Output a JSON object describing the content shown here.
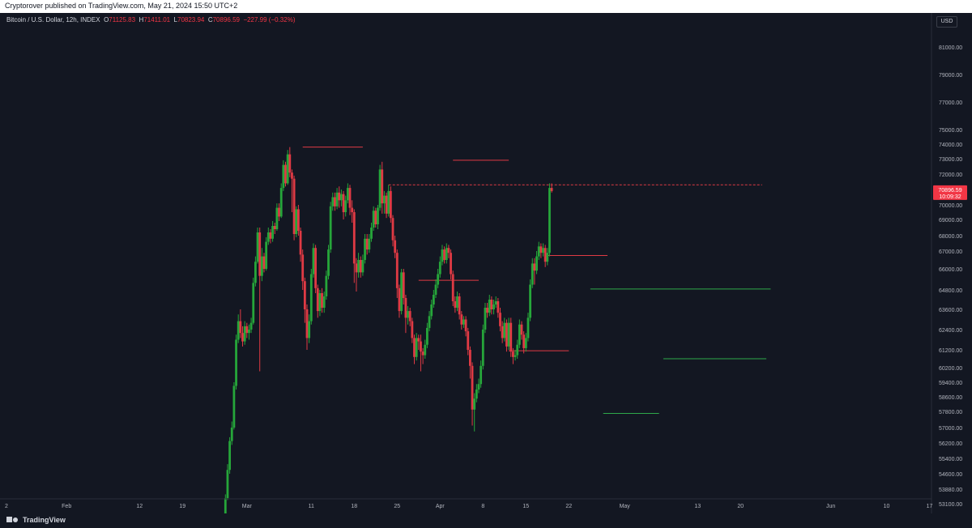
{
  "header": {
    "published": "Cryptorover published on TradingView.com, May 21, 2024 15:50 UTC+2"
  },
  "legend": {
    "symbol": "Bitcoin / U.S. Dollar, 12h, INDEX",
    "o_label": "O",
    "o_value": "71125.83",
    "h_label": "H",
    "h_value": "71411.01",
    "l_label": "L",
    "l_value": "70823.94",
    "c_label": "C",
    "c_value": "70896.59",
    "change": "−227.99 (−0.32%)"
  },
  "currency": "USD",
  "colors": {
    "up": "#089981",
    "down": "#f23645",
    "up_candle": "#26a63a",
    "bg": "#131722"
  },
  "price_tag": {
    "price": "70896.59",
    "countdown": "10:09:32"
  },
  "footer": {
    "brand": "TradingView"
  },
  "chart_data": {
    "type": "candlestick",
    "interval": "12h",
    "y_ticks": [
      "81000.00",
      "79000.00",
      "77000.00",
      "75000.00",
      "74000.00",
      "73000.00",
      "72000.00",
      "70000.00",
      "69000.00",
      "68000.00",
      "67000.00",
      "66000.00",
      "64800.00",
      "63600.00",
      "62400.00",
      "61200.00",
      "60200.00",
      "59400.00",
      "58600.00",
      "57800.00",
      "57000.00",
      "56200.00",
      "55400.00",
      "54600.00",
      "53880.00",
      "53100.00"
    ],
    "x_ticks": [
      {
        "label": "2",
        "slot": 0
      },
      {
        "label": "Feb",
        "slot": 14
      },
      {
        "label": "12",
        "slot": 31
      },
      {
        "label": "19",
        "slot": 41
      },
      {
        "label": "Mar",
        "slot": 56
      },
      {
        "label": "11",
        "slot": 71
      },
      {
        "label": "18",
        "slot": 81
      },
      {
        "label": "25",
        "slot": 91
      },
      {
        "label": "Apr",
        "slot": 101
      },
      {
        "label": "8",
        "slot": 111
      },
      {
        "label": "15",
        "slot": 121
      },
      {
        "label": "22",
        "slot": 131
      },
      {
        "label": "May",
        "slot": 144
      },
      {
        "label": "13",
        "slot": 161
      },
      {
        "label": "20",
        "slot": 171
      },
      {
        "label": "Jun",
        "slot": 192
      },
      {
        "label": "10",
        "slot": 205
      },
      {
        "label": "17",
        "slot": 215
      }
    ],
    "candles": [
      [
        52400,
        53400,
        52200,
        53600
      ],
      [
        53400,
        54800,
        53300,
        55100
      ],
      [
        54800,
        56300,
        54600,
        56500
      ],
      [
        56300,
        57000,
        56100,
        57300
      ],
      [
        57000,
        59200,
        56900,
        59400
      ],
      [
        59200,
        61800,
        59000,
        62100
      ],
      [
        61800,
        62900,
        61600,
        63300
      ],
      [
        62900,
        62200,
        61900,
        63600
      ],
      [
        62200,
        61700,
        61400,
        62600
      ],
      [
        61700,
        62600,
        61500,
        62900
      ],
      [
        62600,
        62200,
        61900,
        62800
      ],
      [
        62200,
        62400,
        61800,
        62700
      ],
      [
        62400,
        62800,
        62200,
        63100
      ],
      [
        62800,
        65200,
        62700,
        65500
      ],
      [
        65200,
        66400,
        65000,
        66700
      ],
      [
        66400,
        68200,
        66300,
        68500
      ],
      [
        68200,
        65600,
        60000,
        68500
      ],
      [
        65600,
        66700,
        65300,
        67200
      ],
      [
        66700,
        66000,
        65800,
        66900
      ],
      [
        66000,
        67600,
        65900,
        67900
      ],
      [
        67600,
        68200,
        67400,
        68500
      ],
      [
        68200,
        67800,
        67500,
        68400
      ],
      [
        67800,
        68600,
        67600,
        68900
      ],
      [
        68600,
        68400,
        68100,
        68800
      ],
      [
        68400,
        69800,
        68300,
        70100
      ],
      [
        69800,
        69200,
        68900,
        70100
      ],
      [
        69200,
        71100,
        69100,
        71400
      ],
      [
        71100,
        72600,
        70900,
        72900
      ],
      [
        72600,
        71400,
        71200,
        72800
      ],
      [
        71400,
        73300,
        71300,
        73600
      ],
      [
        73300,
        72100,
        71800,
        73800
      ],
      [
        72100,
        71700,
        69500,
        72300
      ],
      [
        71700,
        68100,
        67700,
        71900
      ],
      [
        68100,
        69700,
        67900,
        69900
      ],
      [
        69700,
        68300,
        68000,
        70000
      ],
      [
        68300,
        66800,
        66400,
        68500
      ],
      [
        66800,
        65300,
        64800,
        67100
      ],
      [
        65300,
        63600,
        62800,
        65500
      ],
      [
        63600,
        61900,
        61200,
        63900
      ],
      [
        61900,
        62900,
        61600,
        63300
      ],
      [
        62900,
        65700,
        62700,
        66000
      ],
      [
        65700,
        67200,
        65500,
        67500
      ],
      [
        67200,
        64900,
        64600,
        67400
      ],
      [
        64900,
        63500,
        63100,
        65100
      ],
      [
        63500,
        64600,
        63200,
        64800
      ],
      [
        64600,
        63700,
        63400,
        64900
      ],
      [
        63700,
        64400,
        63400,
        64700
      ],
      [
        64400,
        65600,
        64200,
        65900
      ],
      [
        65600,
        67100,
        65400,
        67400
      ],
      [
        67100,
        69900,
        66900,
        70200
      ],
      [
        69900,
        70500,
        69600,
        70800
      ],
      [
        70500,
        69900,
        69600,
        70800
      ],
      [
        69900,
        70800,
        69700,
        71100
      ],
      [
        70800,
        70300,
        69800,
        71200
      ],
      [
        70300,
        70700,
        69900,
        71000
      ],
      [
        70700,
        69500,
        69000,
        70900
      ],
      [
        69500,
        70300,
        69200,
        70600
      ],
      [
        70300,
        71100,
        70100,
        71400
      ],
      [
        71100,
        69800,
        69300,
        71300
      ],
      [
        69800,
        69500,
        68800,
        70300
      ],
      [
        69500,
        66300,
        65200,
        69700
      ],
      [
        66300,
        65800,
        64700,
        66600
      ],
      [
        65800,
        66500,
        65500,
        66900
      ],
      [
        66500,
        65800,
        65500,
        66700
      ],
      [
        65800,
        66500,
        65600,
        66800
      ],
      [
        66500,
        67800,
        66300,
        68100
      ],
      [
        67800,
        67100,
        66800,
        68100
      ],
      [
        67100,
        67800,
        66900,
        68100
      ],
      [
        67800,
        68500,
        67600,
        68800
      ],
      [
        68500,
        69600,
        68300,
        69900
      ],
      [
        69600,
        68700,
        68500,
        69800
      ],
      [
        68700,
        69800,
        68400,
        70000
      ],
      [
        69800,
        72300,
        69600,
        72600
      ],
      [
        72300,
        70100,
        69400,
        72800
      ],
      [
        70100,
        70600,
        69400,
        70900
      ],
      [
        70600,
        69400,
        69100,
        70800
      ],
      [
        69400,
        70900,
        69200,
        71300
      ],
      [
        70900,
        69100,
        68800,
        71200
      ],
      [
        69100,
        67700,
        67300,
        69300
      ],
      [
        67700,
        66900,
        66600,
        68000
      ],
      [
        66900,
        64900,
        64300,
        67100
      ],
      [
        64900,
        63500,
        63100,
        65100
      ],
      [
        63500,
        65800,
        63300,
        66000
      ],
      [
        65800,
        64300,
        63900,
        66000
      ],
      [
        64300,
        63100,
        62200,
        64500
      ],
      [
        63100,
        63500,
        62700,
        63800
      ],
      [
        63500,
        62900,
        62600,
        63700
      ],
      [
        62900,
        61900,
        61600,
        63100
      ],
      [
        61900,
        60800,
        60400,
        62100
      ],
      [
        60800,
        61900,
        60600,
        62200
      ],
      [
        61900,
        61700,
        61200,
        62100
      ],
      [
        61700,
        61100,
        60000,
        62100
      ],
      [
        61100,
        60900,
        60400,
        61300
      ],
      [
        60900,
        61500,
        60700,
        61800
      ],
      [
        61500,
        62500,
        61300,
        62800
      ],
      [
        62500,
        63200,
        62300,
        63500
      ],
      [
        63200,
        63900,
        63000,
        64200
      ],
      [
        63900,
        64500,
        63700,
        64800
      ],
      [
        64500,
        65100,
        64300,
        65400
      ],
      [
        65100,
        65700,
        64900,
        66000
      ],
      [
        65700,
        66400,
        65500,
        66700
      ],
      [
        66400,
        67100,
        66200,
        67400
      ],
      [
        67100,
        66500,
        66300,
        67300
      ],
      [
        66500,
        67200,
        66300,
        67500
      ],
      [
        67200,
        66900,
        66600,
        67400
      ],
      [
        66900,
        65700,
        65400,
        67100
      ],
      [
        65700,
        64100,
        63800,
        65900
      ],
      [
        64100,
        63700,
        63400,
        64400
      ],
      [
        63700,
        64400,
        63500,
        64700
      ],
      [
        64400,
        63300,
        63000,
        64600
      ],
      [
        63300,
        62700,
        62400,
        63500
      ],
      [
        62700,
        63000,
        62500,
        63200
      ],
      [
        63000,
        62300,
        62000,
        63200
      ],
      [
        62300,
        61200,
        60900,
        62500
      ],
      [
        61200,
        60300,
        59600,
        61400
      ],
      [
        60300,
        57900,
        57100,
        60500
      ],
      [
        57900,
        58500,
        56800,
        58800
      ],
      [
        58500,
        59000,
        58300,
        59300
      ],
      [
        59000,
        59300,
        58800,
        59600
      ],
      [
        59300,
        60300,
        59100,
        60600
      ],
      [
        60300,
        62400,
        60100,
        62700
      ],
      [
        62400,
        63700,
        62200,
        64000
      ],
      [
        63700,
        63400,
        63100,
        64000
      ],
      [
        63400,
        64200,
        63200,
        64500
      ],
      [
        64200,
        63600,
        63300,
        64400
      ],
      [
        63600,
        63900,
        63300,
        64200
      ],
      [
        63900,
        64100,
        63700,
        64400
      ],
      [
        64100,
        63400,
        63100,
        64300
      ],
      [
        63400,
        62600,
        62300,
        63700
      ],
      [
        62600,
        61900,
        61600,
        62900
      ],
      [
        61900,
        62800,
        61700,
        63100
      ],
      [
        62800,
        61400,
        61100,
        63000
      ],
      [
        61400,
        62800,
        61200,
        63100
      ],
      [
        62800,
        61100,
        60800,
        63100
      ],
      [
        61100,
        60800,
        60400,
        61300
      ],
      [
        60800,
        60900,
        60600,
        61200
      ],
      [
        60900,
        61500,
        60700,
        61800
      ],
      [
        61500,
        62700,
        61300,
        63000
      ],
      [
        62700,
        62100,
        61800,
        62900
      ],
      [
        62100,
        61300,
        61000,
        62300
      ],
      [
        61300,
        61900,
        61100,
        62200
      ],
      [
        61900,
        63100,
        61700,
        63400
      ],
      [
        63100,
        65100,
        62900,
        65400
      ],
      [
        65100,
        66300,
        64900,
        66600
      ],
      [
        66300,
        65900,
        65100,
        66600
      ],
      [
        65900,
        66700,
        65700,
        67000
      ],
      [
        66700,
        67300,
        66500,
        67600
      ],
      [
        67300,
        66900,
        66600,
        67500
      ],
      [
        66900,
        67200,
        66700,
        67500
      ],
      [
        67200,
        66400,
        66100,
        67400
      ],
      [
        66400,
        66900,
        66200,
        67200
      ],
      [
        66900,
        71100,
        66700,
        71400
      ],
      [
        71100,
        70900,
        70800,
        71400
      ]
    ],
    "levels": [
      {
        "price": 73800,
        "slot_from": 69,
        "slot_to": 83,
        "color": "red"
      },
      {
        "price": 72900,
        "slot_from": 104,
        "slot_to": 117,
        "color": "red"
      },
      {
        "price": 71300,
        "slot_from": 89,
        "slot_to": 176,
        "color": "red",
        "dashed": true
      },
      {
        "price": 66750,
        "slot_from": 126,
        "slot_to": 140,
        "color": "red"
      },
      {
        "price": 65350,
        "slot_from": 96,
        "slot_to": 110,
        "color": "red"
      },
      {
        "price": 64850,
        "slot_from": 136,
        "slot_to": 178,
        "color": "green"
      },
      {
        "price": 61150,
        "slot_from": 117,
        "slot_to": 131,
        "color": "red"
      },
      {
        "price": 60700,
        "slot_from": 153,
        "slot_to": 177,
        "color": "green"
      },
      {
        "price": 57700,
        "slot_from": 139,
        "slot_to": 152,
        "color": "green"
      }
    ]
  }
}
